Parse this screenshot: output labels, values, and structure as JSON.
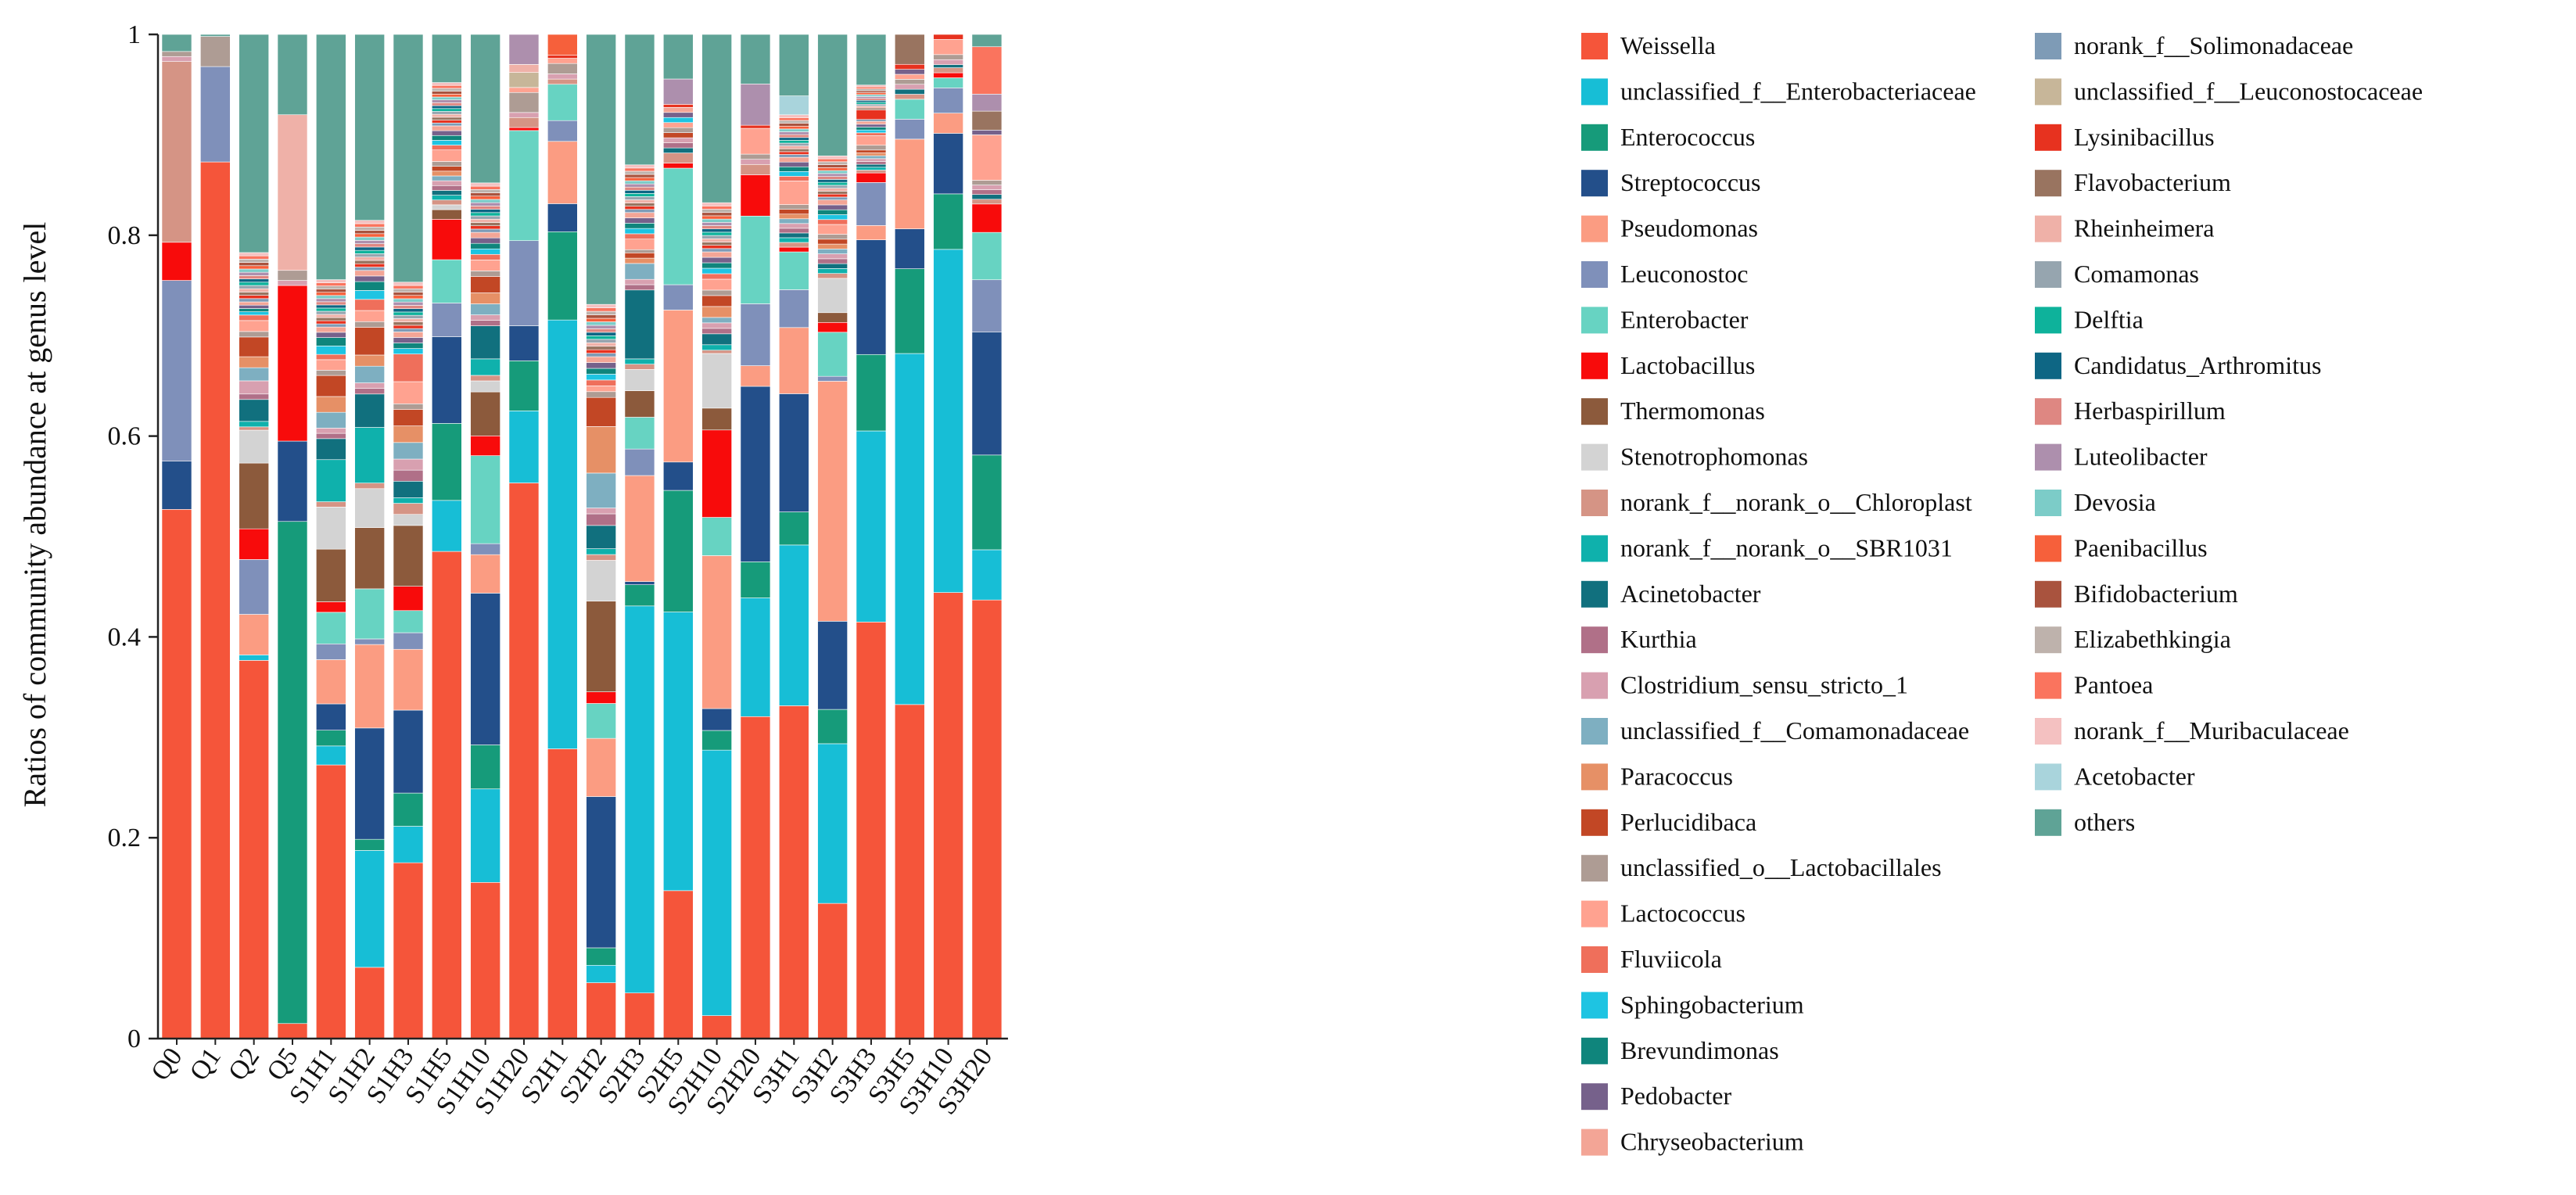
{
  "chart_data": {
    "type": "bar",
    "stacked": true,
    "ylabel": "Ratios of community abundance at genus level",
    "ylim": [
      0,
      1
    ],
    "yticks": [
      "0",
      "0.2",
      "0.4",
      "0.6",
      "0.8",
      "1"
    ],
    "legend_position": "right",
    "categories": [
      "Q0",
      "Q1",
      "Q2",
      "Q5",
      "S1H1",
      "S1H2",
      "S1H3",
      "S1H5",
      "S1H10",
      "S1H20",
      "S2H1",
      "S2H2",
      "S2H3",
      "S2H5",
      "S2H10",
      "S2H20",
      "S3H1",
      "S3H2",
      "S3H3",
      "S3H5",
      "S3H10",
      "S3H20"
    ],
    "series": [
      {
        "name": "Weissella",
        "color": "#F5553A",
        "values": [
          0.527,
          0.873,
          0.345,
          0.015,
          0.26,
          0.064,
          0.159,
          0.506,
          0.142,
          0.555,
          0.279,
          0.048,
          0.043,
          0.146,
          0.021,
          0.312,
          0.352,
          0.138,
          0.436,
          0.335,
          0.442,
          0.463
        ]
      },
      {
        "name": "unclassified_f__Enterobacteriaceae",
        "color": "#17BED6",
        "values": [
          0,
          0,
          0.005,
          0,
          0.018,
          0.105,
          0.033,
          0.053,
          0.085,
          0.072,
          0.413,
          0.015,
          0.365,
          0.275,
          0.243,
          0.115,
          0.17,
          0.163,
          0.2,
          0.352,
          0.34,
          0.053
        ]
      },
      {
        "name": "Enterococcus",
        "color": "#169B7A",
        "values": [
          0,
          0,
          0,
          0.5,
          0.015,
          0.01,
          0.03,
          0.08,
          0.04,
          0.05,
          0.085,
          0.015,
          0.02,
          0.12,
          0.018,
          0.035,
          0.035,
          0.035,
          0.08,
          0.085,
          0.055,
          0.1
        ]
      },
      {
        "name": "Streptococcus",
        "color": "#234F8A",
        "values": [
          0.048,
          0,
          0,
          0.08,
          0.025,
          0.1,
          0.075,
          0.09,
          0.138,
          0.035,
          0.027,
          0.13,
          0.003,
          0.028,
          0.02,
          0.17,
          0.125,
          0.09,
          0.12,
          0.04,
          0.06,
          0.13
        ]
      },
      {
        "name": "Pseudomonas",
        "color": "#FB9C82",
        "values": [
          0,
          0,
          0.037,
          0,
          0.042,
          0.075,
          0.055,
          0,
          0.035,
          0,
          0.06,
          0.05,
          0.1,
          0.15,
          0.14,
          0.02,
          0.07,
          0.245,
          0.015,
          0.09,
          0.02,
          0
        ]
      },
      {
        "name": "Leuconostoc",
        "color": "#7F90BA",
        "values": [
          0.18,
          0.095,
          0.05,
          0,
          0.015,
          0.005,
          0.015,
          0.035,
          0.01,
          0.085,
          0.02,
          0,
          0.025,
          0.025,
          0,
          0.06,
          0.04,
          0.005,
          0.045,
          0.02,
          0.025,
          0.055
        ]
      },
      {
        "name": "Enterobacter",
        "color": "#67D3C2",
        "values": [
          0,
          0,
          0,
          0,
          0.03,
          0.045,
          0.02,
          0.045,
          0.08,
          0.11,
          0.035,
          0.03,
          0.03,
          0.115,
          0.035,
          0.085,
          0.04,
          0.045,
          0,
          0.02,
          0.01,
          0.05
        ]
      },
      {
        "name": "Lactobacillus",
        "color": "#F80B0B",
        "values": [
          0.038,
          0,
          0.028,
          0.155,
          0.01,
          0,
          0.022,
          0.042,
          0.018,
          0.003,
          0,
          0.01,
          0,
          0.005,
          0.08,
          0.04,
          0.005,
          0.01,
          0.01,
          0,
          0.005,
          0.03
        ]
      },
      {
        "name": "Thermomonas",
        "color": "#8C5A3C",
        "values": [
          0,
          0,
          0.06,
          0,
          0.05,
          0.055,
          0.055,
          0.01,
          0.04,
          0,
          0,
          0.078,
          0.025,
          0,
          0.02,
          0,
          0,
          0.01,
          0,
          0,
          0,
          0
        ]
      },
      {
        "name": "Stenotrophomonas",
        "color": "#D3D3D3",
        "values": [
          0,
          0,
          0.03,
          0,
          0.04,
          0.035,
          0.01,
          0.005,
          0.01,
          0,
          0,
          0.035,
          0.02,
          0,
          0.05,
          0,
          0,
          0.035,
          0,
          0,
          0,
          0
        ]
      },
      {
        "name": "norank_f__norank_o__Chloroplast",
        "color": "#D59485",
        "values": [
          0.18,
          0,
          0.003,
          0,
          0.005,
          0.005,
          0.01,
          0.005,
          0.005,
          0.01,
          0.005,
          0.005,
          0.005,
          0.01,
          0.003,
          0.01,
          0.005,
          0.005,
          0.003,
          0.005,
          0.005,
          0.005
        ]
      },
      {
        "name": "norank_f__norank_o__SBR1031",
        "color": "#0FB1AC",
        "values": [
          0,
          0,
          0.005,
          0,
          0.04,
          0.05,
          0.005,
          0.005,
          0.015,
          0,
          0,
          0.005,
          0.005,
          0,
          0.005,
          0,
          0.005,
          0.005,
          0.003,
          0,
          0,
          0
        ]
      },
      {
        "name": "Acinetobacter",
        "color": "#11707E",
        "values": [
          0,
          0,
          0.02,
          0,
          0.02,
          0.03,
          0.015,
          0.005,
          0.03,
          0,
          0,
          0.02,
          0.065,
          0.005,
          0.01,
          0,
          0.005,
          0.005,
          0.003,
          0.005,
          0.003,
          0.005
        ]
      },
      {
        "name": "Kurthia",
        "color": "#B07088",
        "values": [
          0,
          0,
          0.005,
          0,
          0.005,
          0.005,
          0.01,
          0.005,
          0.005,
          0,
          0,
          0.01,
          0.005,
          0.005,
          0.005,
          0,
          0.005,
          0.005,
          0.003,
          0,
          0,
          0.005
        ]
      },
      {
        "name": "Clostridium_sensu_stricto_1",
        "color": "#D8A0B0",
        "values": [
          0.005,
          0,
          0.012,
          0.005,
          0.005,
          0.005,
          0.01,
          0.005,
          0.005,
          0.005,
          0.005,
          0.005,
          0.005,
          0.005,
          0.005,
          0.005,
          0.005,
          0.005,
          0.003,
          0.005,
          0.005,
          0.005
        ]
      },
      {
        "name": "unclassified_f__Comamonadaceae",
        "color": "#7EAFC1",
        "values": [
          0,
          0,
          0.012,
          0,
          0.015,
          0.015,
          0.015,
          0.005,
          0.01,
          0,
          0,
          0.03,
          0.015,
          0,
          0.005,
          0,
          0.005,
          0.005,
          0.003,
          0,
          0,
          0
        ]
      },
      {
        "name": "Paracoccus",
        "color": "#E69066",
        "values": [
          0,
          0,
          0.01,
          0,
          0.015,
          0.01,
          0.015,
          0.005,
          0.01,
          0,
          0,
          0.04,
          0.005,
          0,
          0.01,
          0,
          0.005,
          0.005,
          0.003,
          0,
          0,
          0
        ]
      },
      {
        "name": "Perlucidibaca",
        "color": "#C24725",
        "values": [
          0,
          0,
          0.018,
          0,
          0.02,
          0.025,
          0.015,
          0.005,
          0.015,
          0,
          0,
          0.025,
          0.005,
          0.005,
          0.01,
          0,
          0.005,
          0.005,
          0.003,
          0,
          0,
          0
        ]
      },
      {
        "name": "unclassified_o__Lactobacillales",
        "color": "#AE9C94",
        "values": [
          0.005,
          0.03,
          0.005,
          0.01,
          0.005,
          0.005,
          0.005,
          0.005,
          0.005,
          0.02,
          0.01,
          0.005,
          0.003,
          0.005,
          0.005,
          0.005,
          0.005,
          0.005,
          0.005,
          0.005,
          0.005,
          0.005
        ]
      },
      {
        "name": "Lactococcus",
        "color": "#FFA290",
        "values": [
          0,
          0,
          0.01,
          0,
          0.01,
          0.01,
          0.02,
          0.012,
          0.01,
          0.005,
          0.005,
          0.005,
          0.01,
          0.005,
          0.01,
          0.025,
          0.025,
          0.01,
          0.01,
          0.005,
          0.015,
          0.048
        ]
      },
      {
        "name": "Fluviicola",
        "color": "#EF6F5B",
        "values": [
          0,
          0,
          0.005,
          0,
          0.005,
          0.01,
          0.025,
          0.005,
          0.005,
          0,
          0,
          0.005,
          0.005,
          0,
          0.005,
          0,
          0.005,
          0.005,
          0.003,
          0,
          0,
          0
        ]
      },
      {
        "name": "Sphingobacterium",
        "color": "#1EC4E2",
        "values": [
          0,
          0,
          0.003,
          0,
          0.008,
          0.008,
          0.005,
          0.005,
          0.005,
          0,
          0,
          0.005,
          0.005,
          0.005,
          0.005,
          0,
          0.005,
          0.005,
          0.003,
          0,
          0,
          0
        ]
      },
      {
        "name": "Brevundimonas",
        "color": "#0F857C",
        "values": [
          0,
          0,
          0.003,
          0,
          0.008,
          0.008,
          0.005,
          0.005,
          0.005,
          0,
          0,
          0.005,
          0.005,
          0,
          0.005,
          0,
          0.005,
          0.005,
          0.003,
          0,
          0,
          0
        ]
      },
      {
        "name": "Pedobacter",
        "color": "#76618B",
        "values": [
          0,
          0,
          0.003,
          0,
          0.005,
          0.005,
          0.005,
          0.005,
          0.005,
          0,
          0,
          0.005,
          0.005,
          0.005,
          0.005,
          0,
          0.005,
          0.005,
          0.003,
          0.005,
          0,
          0.005
        ]
      },
      {
        "name": "Chryseobacterium",
        "color": "#F3A596",
        "values": [
          0,
          0,
          0.003,
          0,
          0.005,
          0.005,
          0.005,
          0.005,
          0.005,
          0,
          0,
          0.005,
          0.005,
          0.005,
          0.005,
          0,
          0.005,
          0.005,
          0.003,
          0,
          0,
          0
        ]
      },
      {
        "name": "norank_f__Solimonadaceae",
        "color": "#7E9BB6",
        "values": [
          0,
          0,
          0.003,
          0,
          0.003,
          0.003,
          0.003,
          0.003,
          0.003,
          0,
          0,
          0.003,
          0.003,
          0,
          0.003,
          0,
          0.003,
          0.003,
          0.002,
          0,
          0,
          0
        ]
      },
      {
        "name": "unclassified_f__Leuconostocaceae",
        "color": "#C7B699",
        "values": [
          0,
          0,
          0,
          0,
          0,
          0,
          0,
          0,
          0,
          0.015,
          0,
          0,
          0,
          0,
          0,
          0,
          0,
          0,
          0,
          0,
          0,
          0
        ]
      },
      {
        "name": "Lysinibacillus",
        "color": "#E7321F",
        "values": [
          0,
          0,
          0.003,
          0,
          0.003,
          0.003,
          0.003,
          0.003,
          0.003,
          0,
          0.003,
          0.003,
          0.003,
          0.003,
          0.003,
          0.003,
          0.003,
          0.003,
          0.01,
          0.005,
          0.005,
          0
        ]
      },
      {
        "name": "Flavobacterium",
        "color": "#997460",
        "values": [
          0,
          0,
          0.003,
          0,
          0.003,
          0.003,
          0.003,
          0.003,
          0.003,
          0,
          0,
          0.003,
          0.003,
          0,
          0.003,
          0,
          0.003,
          0.003,
          0.002,
          0.03,
          0,
          0.02
        ]
      },
      {
        "name": "Rheinheimera",
        "color": "#EFB1A8",
        "values": [
          0,
          0,
          0.003,
          0.155,
          0.003,
          0.003,
          0.003,
          0.003,
          0.003,
          0.008,
          0,
          0.003,
          0.003,
          0,
          0.003,
          0,
          0.003,
          0.003,
          0.002,
          0,
          0,
          0
        ]
      },
      {
        "name": "Comamonas",
        "color": "#96A5AF",
        "values": [
          0,
          0,
          0.003,
          0,
          0.003,
          0.003,
          0.003,
          0.003,
          0.003,
          0,
          0,
          0.003,
          0.003,
          0,
          0.003,
          0,
          0.003,
          0.003,
          0.002,
          0,
          0,
          0
        ]
      },
      {
        "name": "Delftia",
        "color": "#0EB29B",
        "values": [
          0,
          0,
          0.003,
          0,
          0.003,
          0.003,
          0.003,
          0.003,
          0.003,
          0,
          0,
          0.003,
          0.003,
          0,
          0.003,
          0,
          0.003,
          0.003,
          0.002,
          0,
          0,
          0
        ]
      },
      {
        "name": "Candidatus_Arthromitus",
        "color": "#0E6684",
        "values": [
          0,
          0,
          0.003,
          0,
          0.003,
          0.003,
          0.003,
          0.003,
          0.003,
          0,
          0,
          0.003,
          0.003,
          0,
          0.003,
          0,
          0.003,
          0.003,
          0.002,
          0,
          0,
          0
        ]
      },
      {
        "name": "Herbaspirillum",
        "color": "#DE8782",
        "values": [
          0,
          0,
          0.003,
          0,
          0.003,
          0.003,
          0.003,
          0.003,
          0.003,
          0,
          0,
          0.003,
          0.003,
          0,
          0.003,
          0,
          0.003,
          0.003,
          0.002,
          0,
          0,
          0
        ]
      },
      {
        "name": "Luteolibacter",
        "color": "#AD8FAD",
        "values": [
          0,
          0,
          0.003,
          0,
          0.003,
          0.003,
          0.003,
          0.003,
          0.003,
          0.03,
          0,
          0.003,
          0.003,
          0.025,
          0.003,
          0.04,
          0.003,
          0.003,
          0.002,
          0,
          0,
          0.018
        ]
      },
      {
        "name": "Devosia",
        "color": "#7CCCC8",
        "values": [
          0,
          0,
          0.003,
          0,
          0.003,
          0.003,
          0.003,
          0.003,
          0.003,
          0,
          0,
          0.003,
          0.003,
          0,
          0.003,
          0,
          0.003,
          0.003,
          0.002,
          0,
          0,
          0
        ]
      },
      {
        "name": "Paenibacillus",
        "color": "#F6603B",
        "values": [
          0,
          0,
          0.003,
          0,
          0.003,
          0.003,
          0.003,
          0.003,
          0.003,
          0,
          0.02,
          0.003,
          0.003,
          0,
          0.003,
          0,
          0.003,
          0.003,
          0.002,
          0,
          0,
          0
        ]
      },
      {
        "name": "Bifidobacterium",
        "color": "#A9533E",
        "values": [
          0,
          0,
          0.003,
          0,
          0.003,
          0.003,
          0.003,
          0.003,
          0.003,
          0,
          0,
          0.003,
          0.003,
          0,
          0.003,
          0,
          0.003,
          0.003,
          0.002,
          0,
          0,
          0
        ]
      },
      {
        "name": "Elizabethkingia",
        "color": "#BEB2AC",
        "values": [
          0,
          0,
          0.003,
          0,
          0.003,
          0.003,
          0.003,
          0.003,
          0.003,
          0,
          0,
          0.003,
          0.003,
          0,
          0.003,
          0,
          0.003,
          0.003,
          0.002,
          0,
          0,
          0
        ]
      },
      {
        "name": "Pantoea",
        "color": "#FA745E",
        "values": [
          0,
          0,
          0.003,
          0,
          0.003,
          0.003,
          0.003,
          0.003,
          0.003,
          0,
          0,
          0.003,
          0.003,
          0,
          0.003,
          0,
          0.003,
          0.003,
          0.002,
          0,
          0,
          0.05
        ]
      },
      {
        "name": "norank_f__Muribaculaceae",
        "color": "#F4C1C1",
        "values": [
          0,
          0,
          0.003,
          0,
          0.003,
          0.003,
          0.003,
          0.003,
          0.003,
          0,
          0,
          0.003,
          0.003,
          0,
          0.003,
          0,
          0.003,
          0.003,
          0.002,
          0,
          0,
          0
        ]
      },
      {
        "name": "Acetobacter",
        "color": "#A9D4DC",
        "values": [
          0,
          0,
          0,
          0,
          0,
          0,
          0,
          0,
          0,
          0,
          0,
          0,
          0,
          0,
          0,
          0,
          0.02,
          0,
          0,
          0,
          0,
          0
        ]
      },
      {
        "name": "others",
        "color": "#5FA396",
        "values": [
          0.017,
          0.002,
          0.199,
          0.08,
          0.233,
          0.167,
          0.224,
          0.05,
          0.135,
          0,
          0,
          0.232,
          0.123,
          0.044,
          0.154,
          0.048,
          0.065,
          0.124,
          0.053,
          0,
          0,
          0.013
        ]
      }
    ]
  }
}
